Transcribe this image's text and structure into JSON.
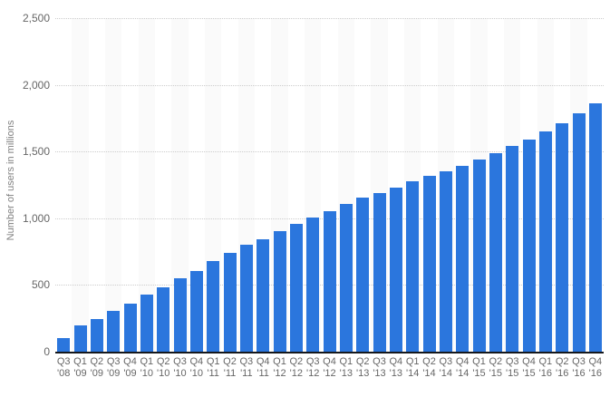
{
  "chart_data": {
    "type": "bar",
    "title": "",
    "xlabel": "",
    "ylabel": "Number of users in millions",
    "ylim": [
      0,
      2500
    ],
    "grid": "horizontal-dotted",
    "legend_position": "none",
    "background_stripes": "alternating vertical bands, one per category slot",
    "yticks": [
      {
        "value": 0,
        "label": "0"
      },
      {
        "value": 500,
        "label": "500"
      },
      {
        "value": 1000,
        "label": "1,000"
      },
      {
        "value": 1500,
        "label": "1,500"
      },
      {
        "value": 2000,
        "label": "2,000"
      },
      {
        "value": 2500,
        "label": "2,500"
      }
    ],
    "categories": [
      "Q3 '08",
      "Q1 '09",
      "Q2 '09",
      "Q3 '09",
      "Q4 '09",
      "Q1 '10",
      "Q2 '10",
      "Q3 '10",
      "Q4 '10",
      "Q1 '11",
      "Q2 '11",
      "Q3 '11",
      "Q4 '11",
      "Q1 '12",
      "Q2 '12",
      "Q3 '12",
      "Q4 '12",
      "Q1 '13",
      "Q2 '13",
      "Q3 '13",
      "Q4 '13",
      "Q1 '14",
      "Q2 '14",
      "Q3 '14",
      "Q4 '14",
      "Q1 '15",
      "Q2 '15",
      "Q3 '15",
      "Q4 '15",
      "Q1 '16",
      "Q2 '16",
      "Q3 '16",
      "Q4 '16"
    ],
    "values": [
      100,
      197,
      242,
      305,
      360,
      431,
      482,
      550,
      608,
      680,
      739,
      800,
      845,
      901,
      955,
      1007,
      1056,
      1110,
      1155,
      1189,
      1228,
      1276,
      1317,
      1350,
      1393,
      1441,
      1490,
      1545,
      1591,
      1654,
      1712,
      1788,
      1860
    ],
    "colors": {
      "bar": "#2b76dd",
      "stripe": "#fafafa",
      "gridline": "#cccccc",
      "axis_line": "#15181d",
      "tick_text": "#666666",
      "axis_title_text": "#808080",
      "background": "#ffffff"
    }
  }
}
